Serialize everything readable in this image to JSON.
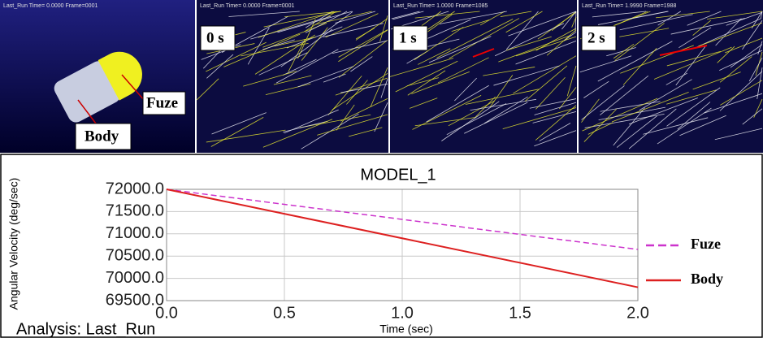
{
  "panels": [
    {
      "header": "Last_Run  Time= 0.0000  Frame=0001",
      "labels": [
        "Fuze",
        "Body"
      ]
    },
    {
      "header": "Last_Run  Time= 0.0000  Frame=0001",
      "labels": [
        "0 s"
      ]
    },
    {
      "header": "Last_Run  Time= 1.0000  Frame=1085",
      "labels": [
        "1 s"
      ]
    },
    {
      "header": "Last_Run  Time= 1.9990  Frame=1988",
      "labels": [
        "2 s"
      ]
    }
  ],
  "chart_data": {
    "type": "line",
    "title": "MODEL_1",
    "x_label": "Time (sec)",
    "y_label": "Angular Velocity (deg/sec)",
    "annotation": "Analysis:  Last_Run",
    "x": [
      0,
      2
    ],
    "series": [
      {
        "name": "Fuze",
        "color": "#cc33cc",
        "style": "dashed",
        "values": [
          72000,
          70650
        ]
      },
      {
        "name": "Body",
        "color": "#dd2020",
        "style": "solid",
        "values": [
          72000,
          69800
        ]
      }
    ],
    "xlim": [
      0,
      2
    ],
    "xticks": [
      {
        "value": 0,
        "label": "0.0"
      },
      0.5,
      {
        "value": 1,
        "label": "1.0"
      },
      1.5,
      {
        "value": 2,
        "label": "2.0"
      }
    ],
    "ylim": [
      69500,
      72000
    ],
    "yticks": [
      {
        "value": 69500,
        "label": "69500.0"
      },
      {
        "value": 70000,
        "label": "70000.0"
      },
      {
        "value": 70500,
        "label": "70500.0"
      },
      {
        "value": 71000,
        "label": "71000.0"
      },
      {
        "value": 71500,
        "label": "71500.0"
      },
      {
        "value": 72000,
        "label": "72000.0"
      }
    ],
    "grid": true,
    "legend": "right"
  }
}
